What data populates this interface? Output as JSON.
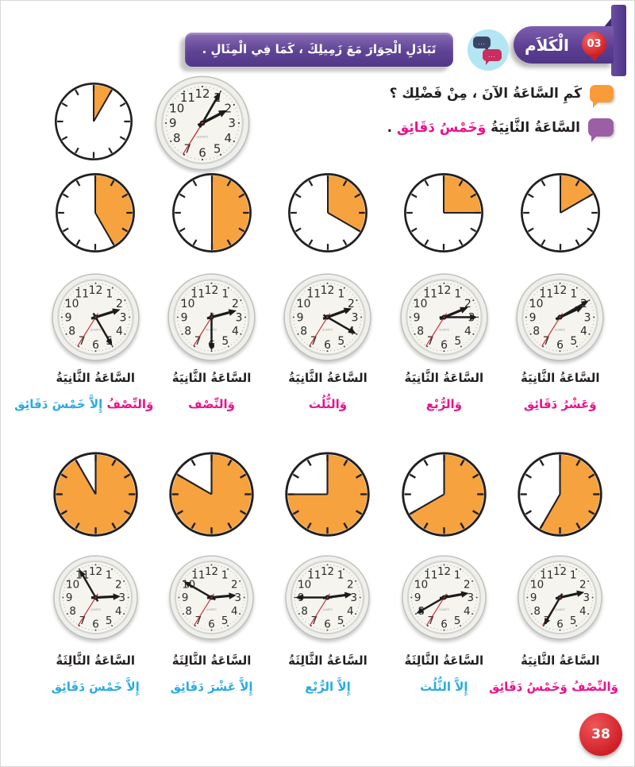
{
  "header": {
    "badge": "03",
    "title": "الْكَلاَم",
    "instruction": "تَبَادَلِ الْحِوَارَ مَعَ زَمِيلِكَ ، كَمَا فِي الْمِثَالِ ."
  },
  "icons": {
    "dialog_icon": "chat-bubbles",
    "dialog_icon_dots": "...",
    "header_badge_shape": "pin"
  },
  "dialog": {
    "question": "كَمِ السَّاعَةُ الآنَ ، مِنْ فَضْلِك ؟",
    "answer_parts": [
      {
        "text": "السَّاعَةُ الثَّانِيَةُ ",
        "color": "#231f20"
      },
      {
        "text": "وَخَمْسُ دَقَائِق",
        "color": "#ec108d"
      },
      {
        "text": " .",
        "color": "#231f20"
      }
    ]
  },
  "example": {
    "pie_minutes": 5,
    "clock": {
      "hour": 2,
      "minute": 5,
      "second": 35
    }
  },
  "clock_face": {
    "numbers": [
      "1",
      "2",
      "3",
      "4",
      "5",
      "6",
      "7",
      "8",
      "9",
      "10",
      "11",
      "12"
    ],
    "brand": "QUARTZ"
  },
  "sections": [
    {
      "name": "top",
      "pies": [
        25,
        30,
        20,
        15,
        10
      ],
      "clocks": [
        {
          "hour": 2,
          "minute": 25,
          "second": 35
        },
        {
          "hour": 2,
          "minute": 30,
          "second": 35
        },
        {
          "hour": 2,
          "minute": 20,
          "second": 35
        },
        {
          "hour": 2,
          "minute": 15,
          "second": 35
        },
        {
          "hour": 2,
          "minute": 10,
          "second": 35
        }
      ],
      "labels": [
        {
          "line1": "السَّاعَةُ الثَّانِيَةُ",
          "line2": [
            {
              "text": "وَالنِّصْفُ",
              "color": "#ec108d"
            },
            {
              "text": "إِلاَّ خَمْسَ دَقَائِق",
              "color": "#29abe2"
            }
          ]
        },
        {
          "line1": "السَّاعَةُ الثَّانِيَةُ",
          "line2": [
            {
              "text": "وَالنِّصْف",
              "color": "#ec108d"
            }
          ]
        },
        {
          "line1": "السَّاعَةُ الثَّانِيَةُ",
          "line2": [
            {
              "text": "وَالثُّلُث",
              "color": "#ec108d"
            }
          ]
        },
        {
          "line1": "السَّاعَةُ الثَّانِيَةُ",
          "line2": [
            {
              "text": "وَالرُّبْع",
              "color": "#ec108d"
            }
          ]
        },
        {
          "line1": "السَّاعَةُ الثَّانِيَةُ",
          "line2": [
            {
              "text": "وَعَشْرُ دَقَائِق",
              "color": "#ec108d"
            }
          ]
        }
      ]
    },
    {
      "name": "bottom",
      "pies": [
        55,
        50,
        45,
        40,
        35
      ],
      "clocks": [
        {
          "hour": 2,
          "minute": 55,
          "second": 35
        },
        {
          "hour": 2,
          "minute": 50,
          "second": 35
        },
        {
          "hour": 2,
          "minute": 45,
          "second": 35
        },
        {
          "hour": 2,
          "minute": 40,
          "second": 35
        },
        {
          "hour": 2,
          "minute": 35,
          "second": 35
        }
      ],
      "labels": [
        {
          "line1": "السَّاعَةُ الثَّالِثَةُ",
          "line2": [
            {
              "text": "إِلاَّ خَمْسَ دَقَائِق",
              "color": "#29abe2"
            }
          ]
        },
        {
          "line1": "السَّاعَةُ الثَّالِثَةُ",
          "line2": [
            {
              "text": "إِلاَّ عَشْرَ دَقَائِق",
              "color": "#29abe2"
            }
          ]
        },
        {
          "line1": "السَّاعَةُ الثَّالِثَةُ",
          "line2": [
            {
              "text": "إِلاَّ الرُّبْع",
              "color": "#29abe2"
            }
          ]
        },
        {
          "line1": "السَّاعَةُ الثَّالِثَةُ",
          "line2": [
            {
              "text": "إِلاَّ الثُّلُث",
              "color": "#29abe2"
            }
          ]
        },
        {
          "line1": "السَّاعَةُ الثَّانِيَةُ",
          "line2": [
            {
              "text": "وَالنِّصْفُ وَخَمْسُ دَقَائِق",
              "color": "#ec108d"
            }
          ]
        }
      ]
    }
  ],
  "page_number": "38",
  "colors": {
    "purple": "#5b3e92",
    "orange": "#f6a23f",
    "pink": "#ec108d",
    "cyan": "#29abe2",
    "badge_red": "#d42127",
    "text_black": "#231f20"
  }
}
